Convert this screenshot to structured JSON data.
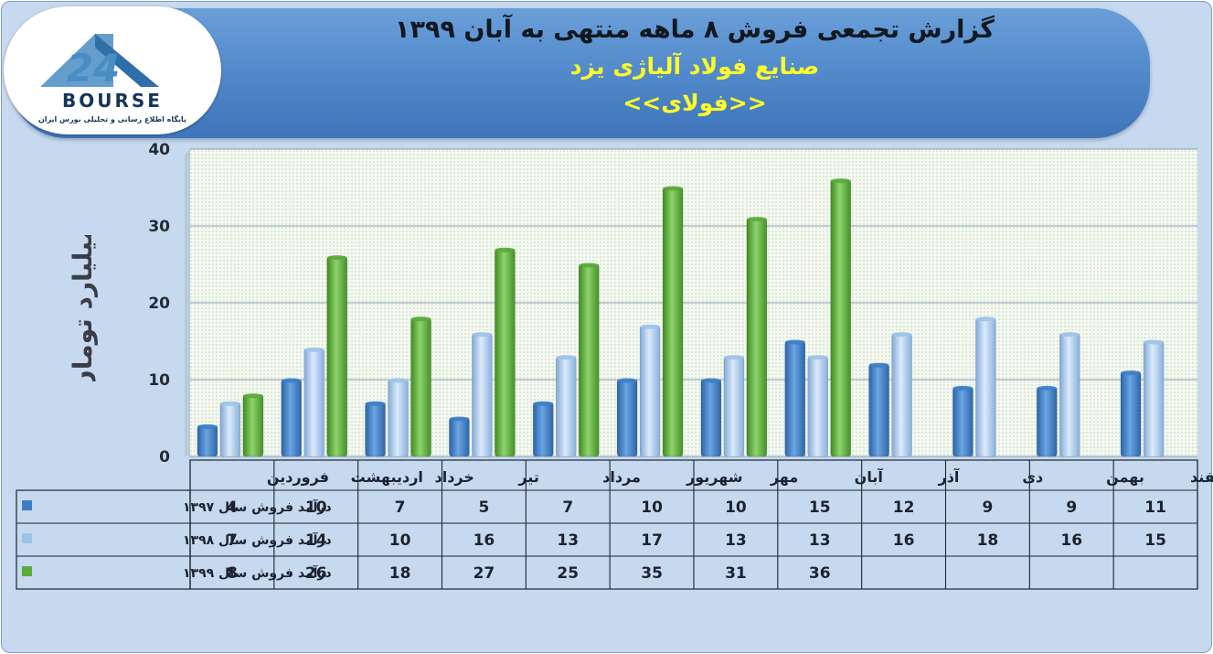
{
  "header": {
    "title": "گزارش تجمعی فروش ۸ ماهه منتهی به آبان ۱۳۹۹",
    "subtitle": "صنایع فولاد آلیاژی یزد",
    "ticker": "<<فولای>>"
  },
  "logo": {
    "brand": "BOURSE",
    "numerals": "24",
    "tagline": "پایگاه اطلاع رسانی و تحلیلی بورس ایران"
  },
  "chart_data": {
    "type": "bar",
    "ylabel": "میلیارد تومان",
    "ylim": [
      0,
      40
    ],
    "yticks": [
      0,
      10,
      20,
      30,
      40
    ],
    "grid": true,
    "legend": "data-table-left",
    "categories": [
      "فروردین",
      "اردیبهشت",
      "خرداد",
      "تیر",
      "مرداد",
      "شهریور",
      "مهر",
      "آبان",
      "آذر",
      "دی",
      "بهمن",
      "اسفند"
    ],
    "series": [
      {
        "name": "درآمد فروش سال ۱۳۹۷",
        "color": "#3d7ec9",
        "values": [
          4,
          10,
          7,
          5,
          7,
          10,
          10,
          15,
          12,
          9,
          9,
          11
        ]
      },
      {
        "name": "درآمد فروش سال ۱۳۹۸",
        "color": "#9ec3ea",
        "values": [
          7,
          14,
          10,
          16,
          13,
          17,
          13,
          13,
          16,
          18,
          16,
          15
        ]
      },
      {
        "name": "درآمد فروش سال ۱۳۹۹",
        "color": "#5aaa3a",
        "values": [
          8,
          26,
          18,
          27,
          25,
          35,
          31,
          36,
          null,
          null,
          null,
          null
        ]
      }
    ]
  }
}
